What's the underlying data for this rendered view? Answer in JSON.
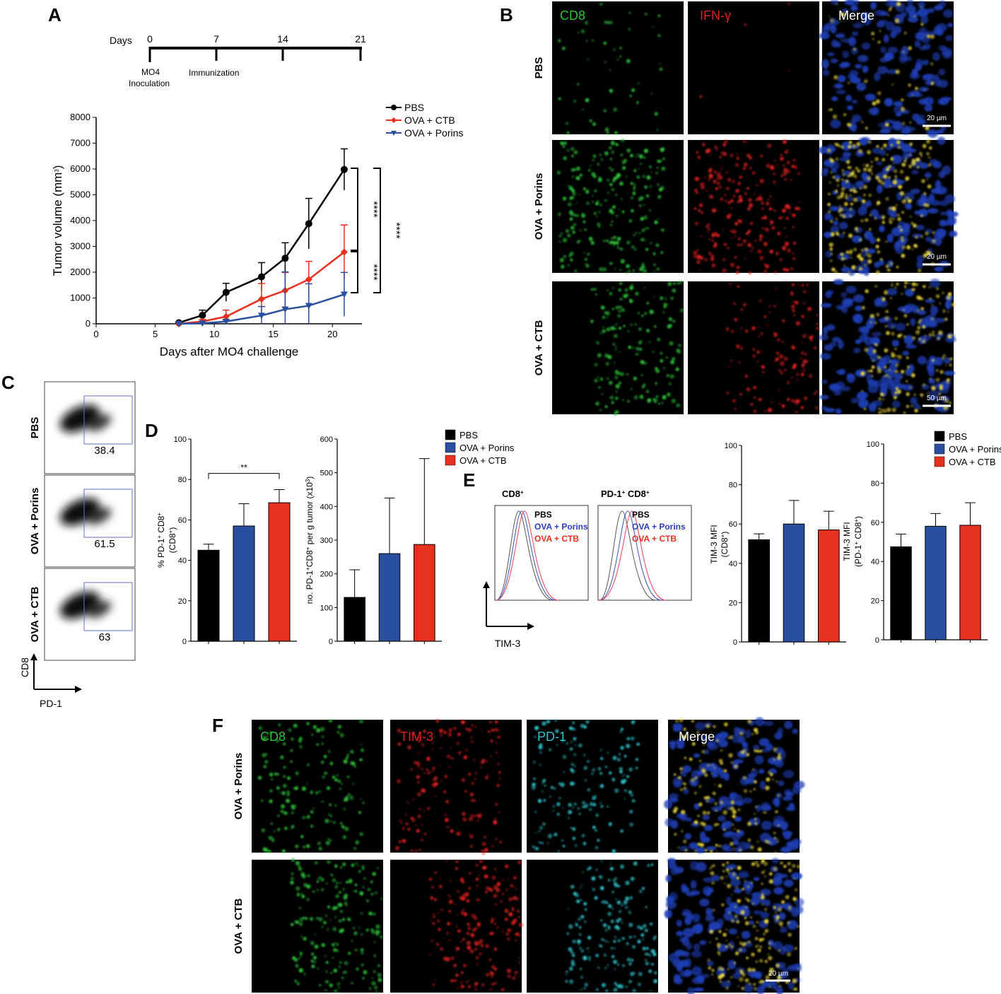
{
  "panel_letters": [
    "A",
    "B",
    "C",
    "D",
    "E",
    "F"
  ],
  "timeline": {
    "title": "Days",
    "ticks": [
      "0",
      "7",
      "14",
      "21"
    ],
    "events": [
      "MO4",
      "Inoculation",
      "Immunization"
    ]
  },
  "panelB": {
    "col_headers": [
      "CD8",
      "IFN-γ",
      "Merge"
    ],
    "row_labels": [
      "PBS",
      "OVA + Porins",
      "OVA + CTB"
    ],
    "scale_bars": [
      "20 µm",
      "20 µm",
      "50 µm"
    ]
  },
  "panelC": {
    "row_labels": [
      "PBS",
      "OVA + Porins",
      "OVA + CTB"
    ],
    "values": [
      "38.4",
      "61.5",
      "63"
    ],
    "xaxis": "PD-1",
    "yaxis": "CD8"
  },
  "panelE": {
    "hist_titles": [
      "CD8",
      "PD-1",
      "CD8"
    ],
    "hist_legend": [
      "PBS",
      "OVA + Porins",
      "OVA + CTB"
    ],
    "xaxis": "TIM-3"
  },
  "panelF": {
    "col_headers": [
      "CD8",
      "TIM-3",
      "PD-1",
      "Merge"
    ],
    "row_labels": [
      "OVA + Porins",
      "OVA + CTB"
    ],
    "scale_bar": "20 µm"
  },
  "colors": {
    "black": "#000000",
    "blue": "#2b4fa0",
    "red": "#e8301f",
    "green": "#2ec23a",
    "ifn_red": "#e02020",
    "cyan": "#2fc4cf",
    "nucleus_blue": "#1f3fb8"
  },
  "chart_data": [
    {
      "id": "A-tumor",
      "type": "line",
      "xlabel": "Days after MO4 challenge",
      "ylabel": "Tumor volume (mm",
      "ylabel_sup": "3",
      "ylabel_close": ")",
      "xlim": [
        0,
        22.5
      ],
      "ylim": [
        0,
        8000
      ],
      "xticks": [
        0,
        5,
        10,
        15,
        20
      ],
      "yticks": [
        0,
        1000,
        2000,
        3000,
        4000,
        5000,
        6000,
        7000,
        8000
      ],
      "legend": [
        "PBS",
        "OVA + CTB",
        "OVA + Porins"
      ],
      "significance": [
        "****",
        "****",
        "****"
      ],
      "series": [
        {
          "name": "PBS",
          "color": "#000000",
          "marker": "circle",
          "x": [
            7,
            9,
            11,
            14,
            16,
            18,
            21
          ],
          "y": [
            40,
            330,
            1220,
            1820,
            2540,
            3880,
            5980
          ],
          "err": [
            20,
            200,
            350,
            550,
            600,
            980,
            800
          ]
        },
        {
          "name": "OVA + CTB",
          "color": "#e8301f",
          "marker": "diamond",
          "x": [
            7,
            9,
            11,
            14,
            16,
            18,
            21
          ],
          "y": [
            0,
            90,
            280,
            960,
            1290,
            1720,
            2780
          ],
          "err": [
            0,
            80,
            250,
            600,
            700,
            700,
            1050
          ]
        },
        {
          "name": "OVA + Porins",
          "color": "#2b4fa0",
          "marker": "triangle",
          "x": [
            7,
            9,
            11,
            14,
            16,
            18,
            21
          ],
          "y": [
            0,
            20,
            90,
            320,
            560,
            700,
            1140
          ],
          "err": [
            0,
            20,
            60,
            350,
            1450,
            850,
            850
          ]
        }
      ]
    },
    {
      "id": "D-pct",
      "type": "bar",
      "ylabel_lines": [
        "% PD-1",
        "+",
        "CD8",
        "+",
        "(CD8",
        "+",
        ")"
      ],
      "ylim": [
        0,
        100
      ],
      "yticks": [
        0,
        20,
        40,
        60,
        80,
        100
      ],
      "categories": [
        "PBS",
        "OVA + Porins",
        "OVA + CTB"
      ],
      "values": [
        45,
        57,
        68.5
      ],
      "errors": [
        3,
        11,
        6.5
      ],
      "colors": [
        "#000000",
        "#2b4fa0",
        "#e8301f"
      ],
      "significance": "**"
    },
    {
      "id": "D-count",
      "type": "bar",
      "ylabel_parts": [
        "no. PD-1",
        "+",
        "CD8",
        "+",
        " per g tumor (x10",
        "3",
        ")"
      ],
      "ylim": [
        0,
        600
      ],
      "yticks": [
        0,
        100,
        200,
        300,
        400,
        500,
        600
      ],
      "categories": [
        "PBS",
        "OVA + Porins",
        "OVA + CTB"
      ],
      "values": [
        130,
        260,
        287
      ],
      "errors": [
        82,
        165,
        255
      ],
      "colors": [
        "#000000",
        "#2b4fa0",
        "#e8301f"
      ],
      "legend": [
        "PBS",
        "OVA + Porins",
        "OVA + CTB"
      ]
    },
    {
      "id": "E-cd8",
      "type": "bar",
      "ylabel_lines": [
        "TIM-3 MFI",
        "(CD8",
        "+",
        ")"
      ],
      "ylim": [
        0,
        100
      ],
      "yticks": [
        0,
        20,
        40,
        60,
        80,
        100
      ],
      "categories": [
        "PBS",
        "OVA + Porins",
        "OVA + CTB"
      ],
      "values": [
        52,
        60,
        57
      ],
      "errors": [
        3,
        12,
        9.5
      ],
      "colors": [
        "#000000",
        "#2b4fa0",
        "#e8301f"
      ]
    },
    {
      "id": "E-pd1cd8",
      "type": "bar",
      "ylabel_lines": [
        "TIM-3 MFI",
        "(PD-1",
        "+",
        " CD8",
        "+",
        ")"
      ],
      "ylim": [
        0,
        100
      ],
      "yticks": [
        0,
        20,
        40,
        60,
        80,
        100
      ],
      "categories": [
        "PBS",
        "OVA + Porins",
        "OVA + CTB"
      ],
      "values": [
        47.5,
        58,
        58.5
      ],
      "errors": [
        6.5,
        6.5,
        11.5
      ],
      "colors": [
        "#000000",
        "#2b4fa0",
        "#e8301f"
      ],
      "legend": [
        "PBS",
        "OVA + Porins",
        "OVA + CTB"
      ]
    }
  ]
}
